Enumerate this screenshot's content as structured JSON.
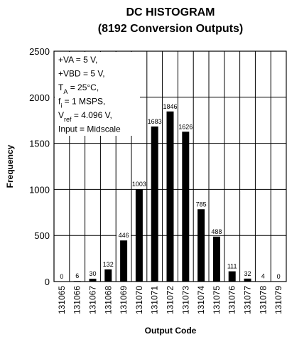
{
  "chart_data": {
    "type": "bar",
    "title": "DC HISTOGRAM",
    "subtitle": "(8192 Conversion Outputs)",
    "x_label": "Output Code",
    "y_label": "Frequency",
    "categories": [
      "131065",
      "131066",
      "131067",
      "131068",
      "131069",
      "131070",
      "131071",
      "131072",
      "131073",
      "131074",
      "131075",
      "131076",
      "131077",
      "131078",
      "131079"
    ],
    "values": [
      0,
      6,
      30,
      132,
      446,
      1003,
      1683,
      1846,
      1626,
      785,
      488,
      111,
      32,
      4,
      0
    ],
    "color": "#000000",
    "ylim": [
      0,
      2500
    ],
    "yticks": [
      0,
      500,
      1000,
      1500,
      2000,
      2500
    ],
    "grid": true,
    "annotations": [
      [
        "+VA = 5 V,"
      ],
      [
        "+VBD = 5 V,"
      ],
      [
        "T",
        "A",
        " = 25°C,"
      ],
      [
        "f",
        "i",
        " = 1 MSPS,"
      ],
      [
        "V",
        "ref",
        " = 4.096 V,"
      ],
      [
        "Input = Midscale"
      ]
    ]
  }
}
